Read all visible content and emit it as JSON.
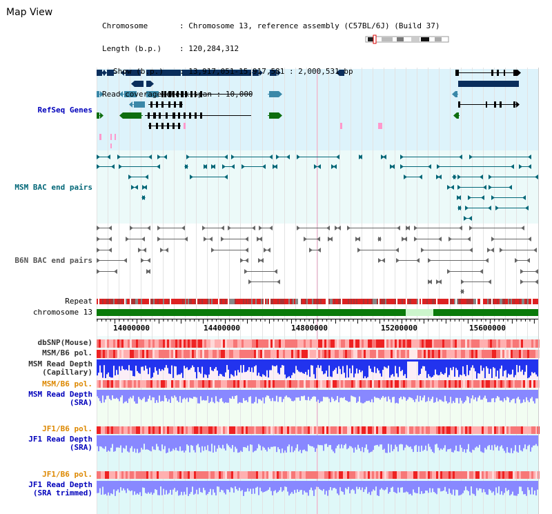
{
  "title": "Map View",
  "info": {
    "chromosome_label": "Chromosome",
    "chromosome_value": ": Chromosome 13, reference assembly (C57BL/6J) (Build 37)",
    "length_label": "Length (b.p.)",
    "length_value": ": 120,284,312",
    "show_label": "Show (b.p.)",
    "show_value": ": 13,917,051-15,917,581 : 2,000,531 bp",
    "coverage_label": "Read coverage check span",
    "coverage_value": ": 10,000"
  },
  "tracks": {
    "refseq": "RefSeq Genes",
    "msm_bac": "MSM BAC end pairs",
    "b6n_bac": "B6N BAC end pairs",
    "repeat": "Repeat",
    "chromosome": "chromosome 13",
    "dbsnp": "dbSNP(Mouse)",
    "msm_b6_pol_1": "MSM/B6 pol.",
    "msm_read_cap_1": "MSM Read Depth",
    "msm_read_cap_2": "(Capillary)",
    "msm_b6_pol_2": "MSM/B6 pol.",
    "msm_read_sra_1": "MSM Read Depth",
    "msm_read_sra_2": "(SRA)",
    "jf1_b6_pol_1": "JF1/B6 pol.",
    "jf1_read_sra_1": "JF1 Read Depth",
    "jf1_read_sra_2": "(SRA)",
    "jf1_b6_pol_2": "JF1/B6 pol.",
    "jf1_trim_1": "JF1 Read Depth",
    "jf1_trim_2": "(SRA trimmed)"
  },
  "axis": {
    "ticks": [
      "14000000",
      "14400000",
      "14800000",
      "15200000",
      "15600000"
    ],
    "tick_values": [
      14000000,
      14400000,
      14800000,
      15200000,
      15600000
    ],
    "start": 13917051,
    "end": 15917581
  },
  "colors": {
    "refseq_bg": "#ddf3fb",
    "bac_bg": "#ecfaf9",
    "gene_navy": "#0a2e5c",
    "gene_teal": "#3a88a8",
    "gene_green": "#0e6e0e",
    "gene_black": "#000000",
    "pink_mark": "#ff99cc",
    "msm_bac_line": "#006677",
    "b6n_bac_line": "#666666",
    "repeat_red": "#dd2222",
    "repeat_grey": "#888888",
    "chromosome_green": "#0a7a0a",
    "chromosome_gap": "#ccf5cc",
    "depth_blue": "#2233ee",
    "depth_light_blue": "#8888ff",
    "pol_light": "#ffb0b0",
    "pol_dark": "#ee2222"
  }
}
